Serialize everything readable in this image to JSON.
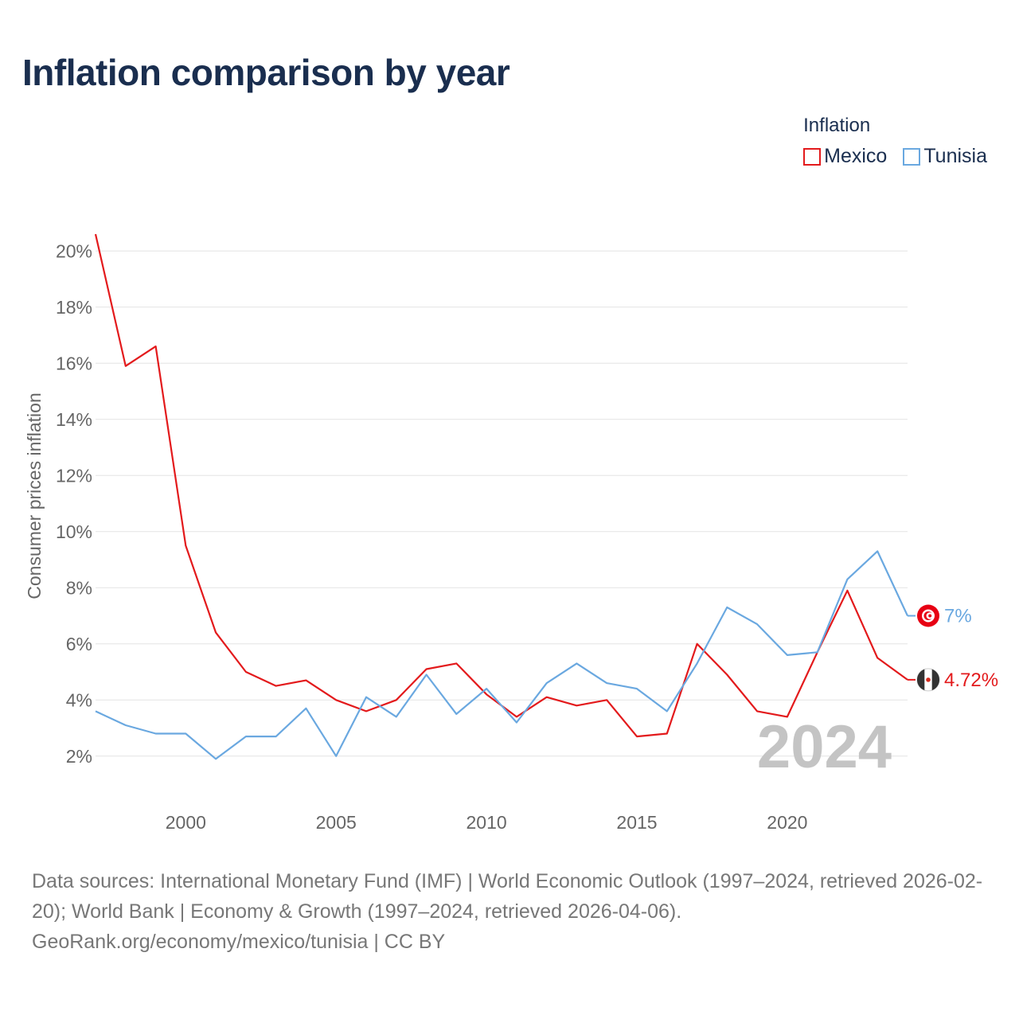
{
  "title": "Inflation comparison by year",
  "legend": {
    "title": "Inflation",
    "items": [
      {
        "label": "Mexico",
        "color": "#e31a1c"
      },
      {
        "label": "Tunisia",
        "color": "#6aa8e0"
      }
    ]
  },
  "chart_data": {
    "type": "line",
    "title": "Inflation comparison by year",
    "xlabel": "",
    "ylabel": "Consumer prices inflation",
    "x": [
      1997,
      1998,
      1999,
      2000,
      2001,
      2002,
      2003,
      2004,
      2005,
      2006,
      2007,
      2008,
      2009,
      2010,
      2011,
      2012,
      2013,
      2014,
      2015,
      2016,
      2017,
      2018,
      2019,
      2020,
      2021,
      2022,
      2023,
      2024
    ],
    "xlim": [
      1997,
      2024
    ],
    "xticks": [
      2000,
      2005,
      2010,
      2015,
      2020
    ],
    "ylim": [
      1,
      21
    ],
    "yticks": [
      2,
      4,
      6,
      8,
      10,
      12,
      14,
      16,
      18,
      20
    ],
    "ytick_suffix": "%",
    "grid": true,
    "year_watermark": "2024",
    "series": [
      {
        "name": "Mexico",
        "color": "#e31a1c",
        "end_label": "4.72%",
        "flag_icon": "mexico-flag-icon",
        "values": [
          20.6,
          15.9,
          16.6,
          9.5,
          6.4,
          5.0,
          4.5,
          4.7,
          4.0,
          3.6,
          4.0,
          5.1,
          5.3,
          4.2,
          3.4,
          4.1,
          3.8,
          4.0,
          2.7,
          2.8,
          6.0,
          4.9,
          3.6,
          3.4,
          5.7,
          7.9,
          5.5,
          4.72
        ]
      },
      {
        "name": "Tunisia",
        "color": "#6aa8e0",
        "end_label": "7%",
        "flag_icon": "tunisia-flag-icon",
        "values": [
          3.6,
          3.1,
          2.8,
          2.8,
          1.9,
          2.7,
          2.7,
          3.7,
          2.0,
          4.1,
          3.4,
          4.9,
          3.5,
          4.4,
          3.2,
          4.6,
          5.3,
          4.6,
          4.4,
          3.6,
          5.3,
          7.3,
          6.7,
          5.6,
          5.7,
          8.3,
          9.3,
          7.0
        ]
      }
    ]
  },
  "footer": {
    "line1": "Data sources: International Monetary Fund (IMF) | World Economic Outlook (1997–2024, retrieved 2026-02-20); World Bank | Economy & Growth (1997–2024, retrieved 2026-04-06).",
    "line2": "GeoRank.org/economy/mexico/tunisia | CC BY"
  }
}
